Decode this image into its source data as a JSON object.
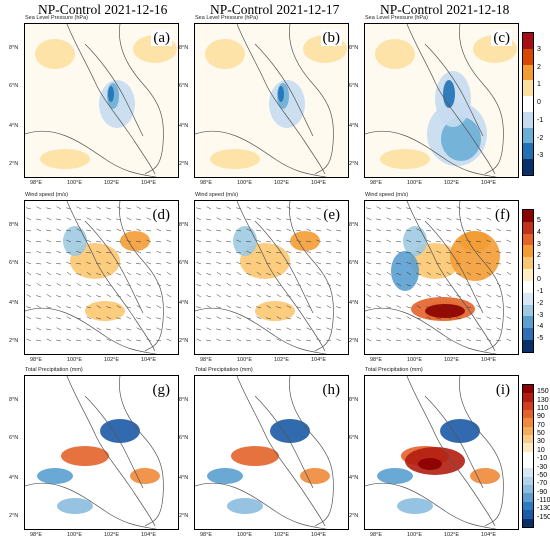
{
  "titles": [
    "NP-Control 2021-12-16",
    "NP-Control 2021-12-17",
    "NP-Control 2021-12-18"
  ],
  "row_labels": [
    "Sea Level Pressure (hPa)",
    "Wind speed (m/s)",
    "Total Precipitation (mm)"
  ],
  "panel_labels": [
    "(a)",
    "(b)",
    "(c)",
    "(d)",
    "(e)",
    "(f)",
    "(g)",
    "(h)",
    "(i)"
  ],
  "lat_ticks": [
    "8°N",
    "6°N",
    "4°N",
    "2°N"
  ],
  "lon_ticks": [
    "98°E",
    "100°E",
    "102°E",
    "104°E"
  ],
  "colorbars": [
    {
      "name": "slp",
      "labels": [
        "3",
        "2",
        "1",
        "0",
        "-1",
        "-2",
        "-3"
      ],
      "colors": [
        "#a50f15",
        "#d94801",
        "#f39c34",
        "#fde0a0",
        "#ffffff",
        "#c6dbef",
        "#6baed6",
        "#2171b5",
        "#08306b"
      ]
    },
    {
      "name": "wind",
      "labels": [
        "5",
        "4",
        "3",
        "2",
        "1",
        "0",
        "-1",
        "-2",
        "-3",
        "-4",
        "-5"
      ],
      "colors": [
        "#8b0000",
        "#c2321a",
        "#e3632b",
        "#f39c34",
        "#fcc671",
        "#ffefc2",
        "#ffffff",
        "#d6e8f5",
        "#9ecae1",
        "#5a9fd0",
        "#2f6fb4",
        "#08306b"
      ]
    },
    {
      "name": "precip",
      "labels": [
        "150",
        "130",
        "110",
        "90",
        "70",
        "50",
        "30",
        "10",
        "-10",
        "-30",
        "-50",
        "-70",
        "-90",
        "-110",
        "-130",
        "-150"
      ],
      "colors": [
        "#8b0000",
        "#b31d0f",
        "#d1401e",
        "#e3632b",
        "#f08a3a",
        "#f5ac58",
        "#fbcc85",
        "#fde8bf",
        "#ffffff",
        "#ffffff",
        "#d6e8f5",
        "#b3d3ea",
        "#8cbcdf",
        "#5a9fd0",
        "#2f7bc0",
        "#1b5aa6",
        "#08306b"
      ]
    }
  ]
}
